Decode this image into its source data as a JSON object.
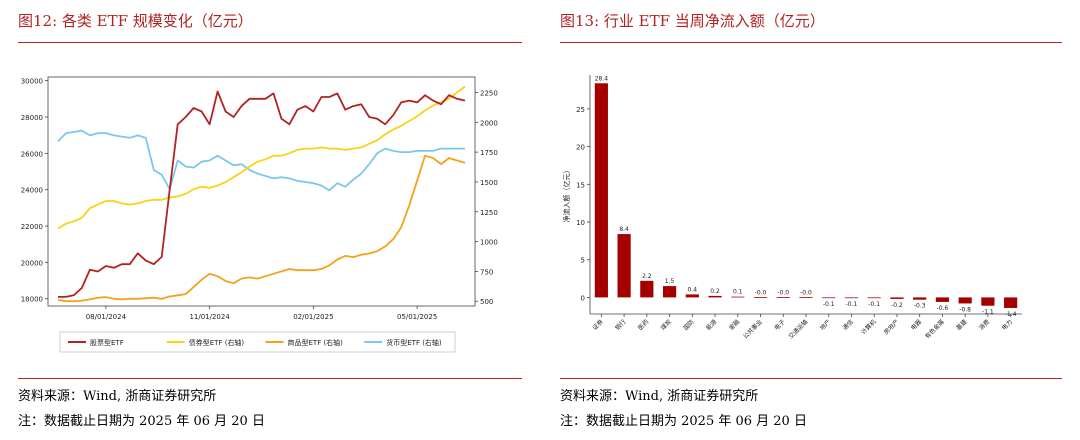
{
  "left": {
    "title": "图12:  各类 ETF 规模变化（亿元）",
    "source": "资料来源：Wind, 浙商证券研究所",
    "note": "注：数据截止日期为 2025 年 06 月 20 日"
  },
  "right": {
    "title": "图13:  行业 ETF 当周净流入额（亿元）",
    "source": "资料来源：Wind, 浙商证券研究所",
    "note": "注：数据截止日期为 2025 年 06 月 20 日"
  },
  "chart_data": [
    {
      "type": "line",
      "x_ticks": [
        "08/01/2024",
        "11/01/2024",
        "02/01/2025",
        "05/01/2025"
      ],
      "y_left": {
        "min": 17600,
        "max": 30200,
        "ticks": [
          18000,
          20000,
          22000,
          24000,
          26000,
          28000,
          30000
        ]
      },
      "y_right": {
        "min": 460,
        "max": 2380,
        "ticks": [
          500,
          750,
          1000,
          1250,
          1500,
          1750,
          2000,
          2250
        ]
      },
      "grid": false,
      "legend_position": "bottom",
      "series": [
        {
          "name": "股票型ETF",
          "axis": "left",
          "color": "#b22222",
          "values": [
            18100,
            18100,
            18200,
            18600,
            19600,
            19500,
            19800,
            19700,
            19900,
            19900,
            20500,
            20100,
            19900,
            20300,
            24000,
            27600,
            28000,
            28500,
            28300,
            27600,
            29400,
            28300,
            28000,
            28600,
            29000,
            29000,
            29000,
            29300,
            27900,
            27600,
            28400,
            28600,
            28300,
            29100,
            29100,
            29300,
            28400,
            28600,
            28700,
            28000,
            27900,
            27600,
            28100,
            28800,
            28900,
            28800,
            29200,
            28900,
            28700,
            29200,
            29000,
            28900
          ]
        },
        {
          "name": "债券型ETF (右轴)",
          "axis": "right",
          "color": "#f5d516",
          "values": [
            1110,
            1150,
            1170,
            1200,
            1280,
            1310,
            1340,
            1340,
            1320,
            1310,
            1320,
            1340,
            1350,
            1350,
            1370,
            1380,
            1400,
            1440,
            1460,
            1450,
            1470,
            1500,
            1540,
            1580,
            1630,
            1670,
            1690,
            1720,
            1720,
            1740,
            1770,
            1780,
            1780,
            1790,
            1780,
            1780,
            1770,
            1780,
            1790,
            1820,
            1850,
            1900,
            1940,
            1970,
            2010,
            2050,
            2100,
            2140,
            2170,
            2200,
            2250,
            2300
          ]
        },
        {
          "name": "商品型ETF (右轴)",
          "axis": "right",
          "color": "#f3a21a",
          "values": [
            510,
            500,
            500,
            505,
            515,
            530,
            535,
            520,
            515,
            520,
            520,
            525,
            530,
            520,
            540,
            550,
            560,
            620,
            680,
            730,
            710,
            670,
            650,
            690,
            700,
            690,
            710,
            730,
            750,
            770,
            760,
            760,
            760,
            770,
            800,
            850,
            880,
            870,
            890,
            900,
            920,
            960,
            1020,
            1120,
            1300,
            1510,
            1720,
            1700,
            1650,
            1700,
            1680,
            1660
          ]
        },
        {
          "name": "货币型ETF (右轴)",
          "axis": "right",
          "color": "#7cc8e8",
          "values": [
            1840,
            1910,
            1920,
            1930,
            1890,
            1910,
            1910,
            1890,
            1880,
            1870,
            1890,
            1870,
            1600,
            1560,
            1440,
            1680,
            1630,
            1620,
            1670,
            1680,
            1720,
            1680,
            1640,
            1650,
            1600,
            1570,
            1550,
            1530,
            1540,
            1530,
            1510,
            1500,
            1490,
            1470,
            1430,
            1490,
            1460,
            1520,
            1570,
            1650,
            1740,
            1780,
            1760,
            1750,
            1750,
            1760,
            1760,
            1760,
            1780,
            1780,
            1780,
            1780
          ]
        }
      ]
    },
    {
      "type": "bar",
      "ylabel": "净流入额（亿元）",
      "y_ticks": [
        0,
        5,
        10,
        15,
        20,
        25
      ],
      "ylim": [
        -2.2,
        29.5
      ],
      "color": "#a50000",
      "categories": [
        "证券",
        "银行",
        "医药",
        "煤炭",
        "国防",
        "能源",
        "金融",
        "公共事业",
        "电子",
        "交通运输",
        "地产",
        "通信",
        "计算机",
        "房地产",
        "电器",
        "有色金属",
        "基建",
        "消费",
        "电力"
      ],
      "values": [
        28.4,
        8.4,
        2.2,
        1.5,
        0.4,
        0.2,
        0.1,
        0.0,
        0.0,
        0.0,
        -0.1,
        -0.1,
        -0.1,
        -0.2,
        -0.3,
        -0.6,
        -0.8,
        -1.1,
        -1.4
      ],
      "labels": [
        "28.4",
        "8.4",
        "2.2",
        "1.5",
        "0.4",
        "0.2",
        "0.1",
        "-0.0",
        "-0.0",
        "-0.0",
        "-0.1",
        "-0.1",
        "-0.1",
        "-0.2",
        "-0.3",
        "-0.6",
        "-0.8",
        "-1.1",
        "-1.4"
      ]
    }
  ]
}
